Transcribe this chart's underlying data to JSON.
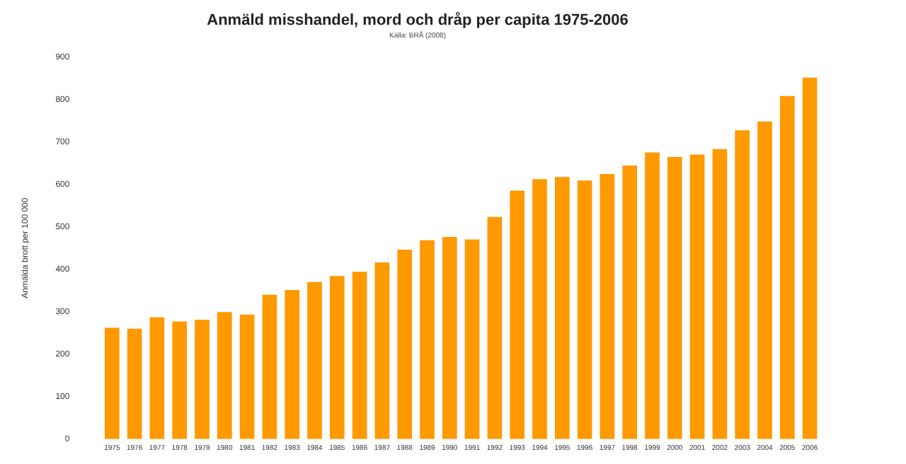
{
  "chart_data": {
    "type": "bar",
    "title": "Anmäld misshandel, mord och dråp per capita 1975-2006",
    "subtitle": "Källa: BRÅ (2008)",
    "ylabel": "Anmälda brott per 100 000",
    "categories": [
      "1975",
      "1976",
      "1977",
      "1978",
      "1979",
      "1980",
      "1981",
      "1982",
      "1983",
      "1984",
      "1985",
      "1986",
      "1987",
      "1988",
      "1989",
      "1990",
      "1991",
      "1992",
      "1993",
      "1994",
      "1995",
      "1996",
      "1997",
      "1998",
      "1999",
      "2000",
      "2001",
      "2002",
      "2003",
      "2004",
      "2005",
      "2006"
    ],
    "values": [
      262,
      260,
      287,
      277,
      281,
      299,
      293,
      340,
      351,
      370,
      384,
      394,
      416,
      446,
      468,
      476,
      470,
      523,
      585,
      612,
      617,
      609,
      624,
      644,
      675,
      664,
      670,
      683,
      727,
      748,
      808,
      851
    ],
    "color": "#ff9900",
    "ylim": [
      0,
      900
    ],
    "yticks": [
      0,
      100,
      200,
      300,
      400,
      500,
      600,
      700,
      800,
      900
    ],
    "grid": false,
    "legend": false
  }
}
